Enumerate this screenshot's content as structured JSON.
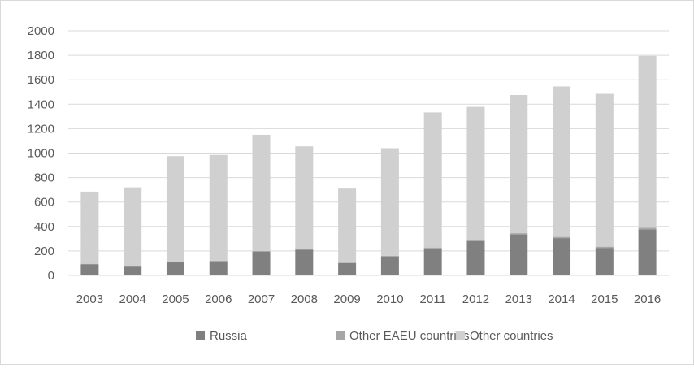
{
  "chart_data": {
    "type": "bar",
    "stacked": true,
    "categories": [
      "2003",
      "2004",
      "2005",
      "2006",
      "2007",
      "2008",
      "2009",
      "2010",
      "2011",
      "2012",
      "2013",
      "2014",
      "2015",
      "2016"
    ],
    "series": [
      {
        "name": "Russia",
        "color": "#808080",
        "values": [
          90,
          70,
          110,
          115,
          195,
          210,
          100,
          155,
          220,
          280,
          335,
          305,
          225,
          375
        ]
      },
      {
        "name": "Other EAEU countries",
        "color": "#a6a6a6",
        "values": [
          5,
          5,
          5,
          5,
          5,
          5,
          5,
          5,
          8,
          8,
          10,
          10,
          10,
          15
        ]
      },
      {
        "name": "Other countries",
        "color": "#d0d0d0",
        "values": [
          590,
          645,
          860,
          865,
          950,
          840,
          605,
          880,
          1105,
          1090,
          1130,
          1230,
          1250,
          1405
        ]
      }
    ],
    "ylim": [
      0,
      2000
    ],
    "yticks": [
      "0",
      "200",
      "400",
      "600",
      "800",
      "1000",
      "1200",
      "1400",
      "1600",
      "1800",
      "2000"
    ],
    "grid": true,
    "legend_position": "bottom"
  }
}
